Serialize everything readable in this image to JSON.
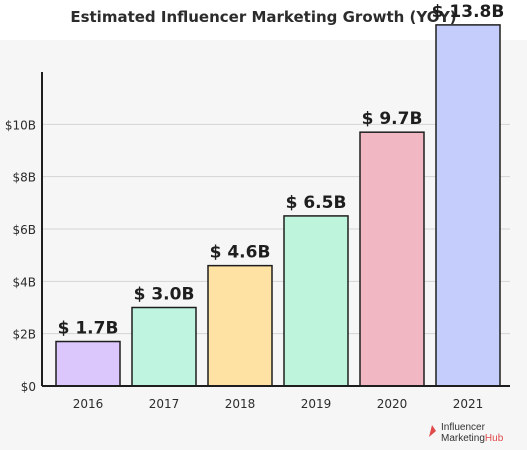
{
  "chart_data": {
    "type": "bar",
    "title": "Estimated Influencer Marketing Growth (YOY)",
    "categories": [
      "2016",
      "2017",
      "2018",
      "2019",
      "2020",
      "2021"
    ],
    "values": [
      1.7,
      3.0,
      4.6,
      6.5,
      9.7,
      13.8
    ],
    "data_labels": [
      "$ 1.7B",
      "$ 3.0B",
      "$ 4.6B",
      "$ 6.5B",
      "$ 9.7B",
      "$ 13.8B"
    ],
    "colors": [
      "#dbc7fb",
      "#bff4e0",
      "#fde2a4",
      "#bff4dc",
      "#f1b7c3",
      "#c4cdfb"
    ],
    "bar_stroke": "#1e1e1e",
    "ylim": [
      0,
      12
    ],
    "yticks": [
      0,
      2,
      4,
      6,
      8,
      10
    ],
    "ytick_labels": [
      "$0",
      "$2B",
      "$4B",
      "$6B",
      "$8B",
      "$10B"
    ],
    "xlabel": "",
    "ylabel": "",
    "grid": true,
    "legend": "none"
  },
  "brand": {
    "line1": "Influencer",
    "line2a": "Marketing",
    "line2b": "Hub",
    "accent": "#e04a4a"
  }
}
